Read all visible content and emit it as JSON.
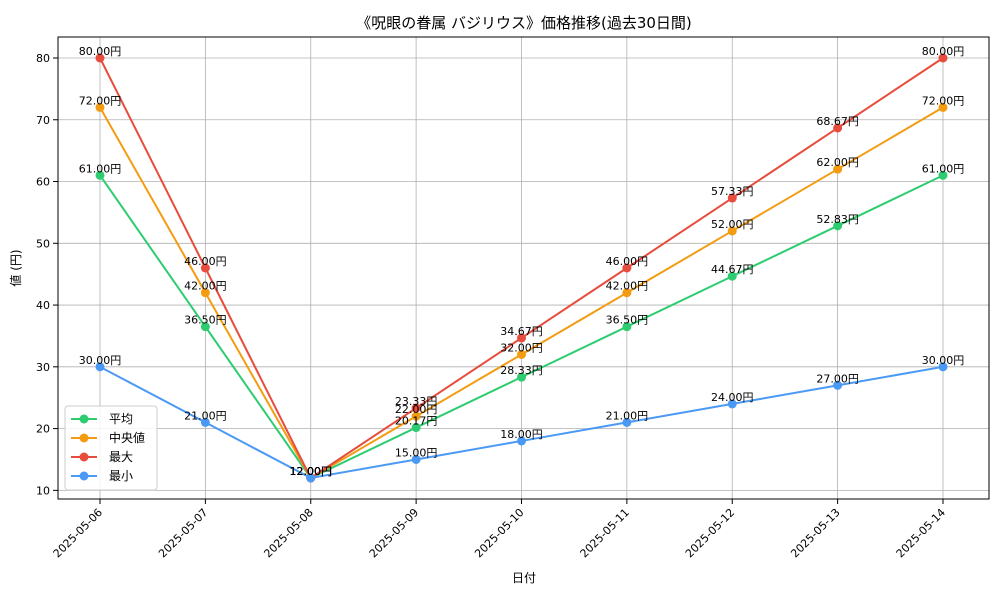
{
  "chart_data": {
    "type": "line",
    "title": "《呪眼の眷属 バジリウス》価格推移(過去30日間)",
    "xlabel": "日付",
    "ylabel": "値 (円)",
    "categories": [
      "2025-05-06",
      "2025-05-07",
      "2025-05-08",
      "2025-05-09",
      "2025-05-10",
      "2025-05-11",
      "2025-05-12",
      "2025-05-13",
      "2025-05-14"
    ],
    "ylim": [
      8.6,
      83.4
    ],
    "yticks": [
      10,
      20,
      30,
      40,
      50,
      60,
      70,
      80
    ],
    "grid": true,
    "legend_position": "lower-left",
    "label_suffix": "円",
    "series": [
      {
        "name": "平均",
        "color": "#2ecc71",
        "values": [
          61.0,
          36.5,
          12.0,
          20.17,
          28.33,
          36.5,
          44.67,
          52.83,
          61.0
        ]
      },
      {
        "name": "中央値",
        "color": "#f39c12",
        "values": [
          72.0,
          42.0,
          12.0,
          22.0,
          32.0,
          42.0,
          52.0,
          62.0,
          72.0
        ]
      },
      {
        "name": "最大",
        "color": "#e74c3c",
        "values": [
          80.0,
          46.0,
          12.0,
          23.33,
          34.67,
          46.0,
          57.33,
          68.67,
          80.0
        ]
      },
      {
        "name": "最小",
        "color": "#4a9af5",
        "values": [
          30.0,
          21.0,
          12.0,
          15.0,
          18.0,
          21.0,
          24.0,
          27.0,
          30.0
        ]
      }
    ]
  }
}
